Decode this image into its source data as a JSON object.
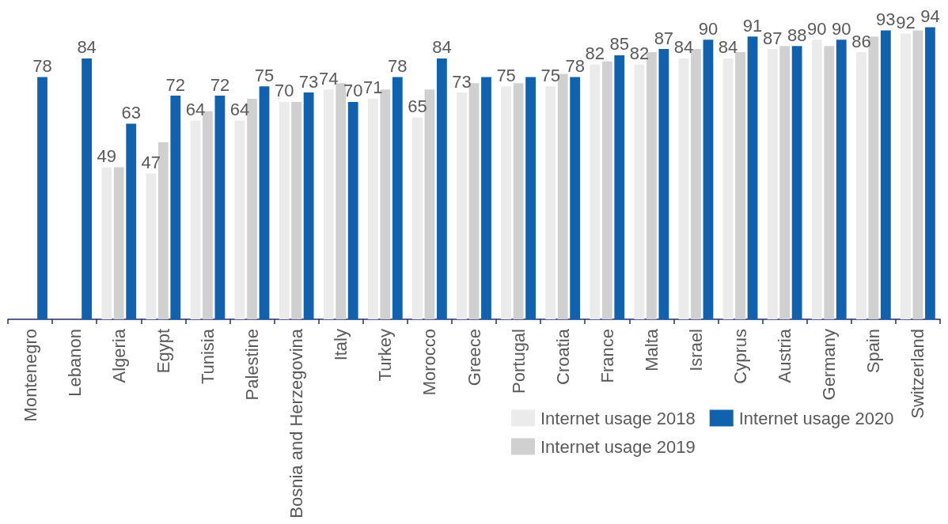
{
  "chart_data": {
    "type": "bar",
    "categories": [
      "Montenegro",
      "Lebanon",
      "Algeria",
      "Egypt",
      "Tunisia",
      "Palestine",
      "Bosnia and Herzegovina",
      "Italy",
      "Turkey",
      "Morocco",
      "Greece",
      "Portugal",
      "Croatia",
      "France",
      "Malta",
      "Israel",
      "Cyprus",
      "Austria",
      "Germany",
      "Spain",
      "Switzerland"
    ],
    "series": [
      {
        "name": "Internet usage 2018",
        "color": "#ebebeb",
        "values": [
          null,
          null,
          49,
          47,
          64,
          64,
          70,
          74,
          71,
          65,
          73,
          75,
          75,
          82,
          82,
          84,
          84,
          87,
          90,
          86,
          92
        ],
        "value_labels": [
          null,
          null,
          "49",
          "47",
          "64",
          "64",
          "70",
          "74",
          "71",
          "65",
          "73",
          "75",
          "75",
          "82",
          "82",
          "84",
          "84",
          "87",
          "90",
          "86",
          "92"
        ]
      },
      {
        "name": "Internet usage 2019",
        "color": "#d0d0d0",
        "values": [
          null,
          null,
          49,
          57,
          67,
          71,
          70,
          76,
          74,
          74,
          76,
          76,
          79,
          83,
          86,
          87,
          86,
          88,
          88,
          91,
          93
        ]
      },
      {
        "name": "Internet usage 2020",
        "color": "#1162ae",
        "values": [
          78,
          84,
          63,
          72,
          72,
          75,
          73,
          70,
          78,
          84,
          78,
          78,
          78,
          85,
          87,
          90,
          91,
          88,
          90,
          93,
          94
        ],
        "value_labels": [
          "78",
          "84",
          "63",
          "72",
          "72",
          "75",
          "73",
          "70",
          "78",
          "84",
          null,
          null,
          "78",
          "85",
          "87",
          "90",
          "91",
          "88",
          "90",
          "93",
          "94"
        ]
      }
    ],
    "legend": "bottom right"
  }
}
